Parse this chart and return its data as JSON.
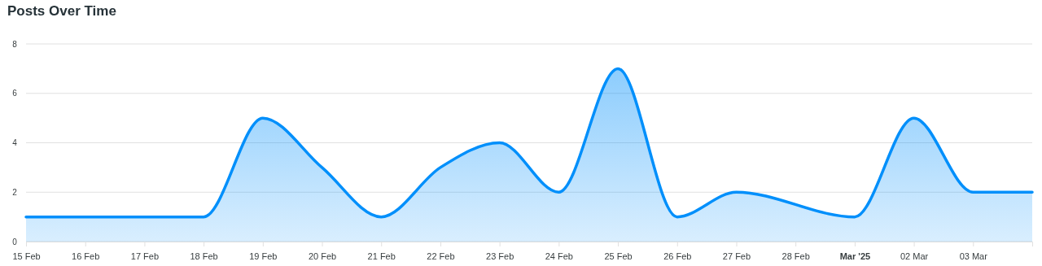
{
  "chart_data": {
    "type": "area",
    "title": "Posts Over Time",
    "x": [
      "2025-02-15",
      "2025-02-16",
      "2025-02-17",
      "2025-02-18",
      "2025-02-19",
      "2025-02-20",
      "2025-02-21",
      "2025-02-22",
      "2025-02-23",
      "2025-02-24",
      "2025-02-25",
      "2025-02-26",
      "2025-02-27",
      "2025-03-01",
      "2025-03-02",
      "2025-03-03",
      "2025-03-04"
    ],
    "values": [
      1,
      1,
      1,
      1,
      5,
      3,
      1,
      3,
      4,
      2,
      7,
      1,
      2,
      1,
      5,
      2,
      2
    ],
    "color": "#008ffb",
    "xlim": [
      "2025-02-15",
      "2025-03-04"
    ],
    "xticks": [
      {
        "value": "2025-02-15",
        "label": "15 Feb"
      },
      {
        "value": "2025-02-16",
        "label": "16 Feb"
      },
      {
        "value": "2025-02-17",
        "label": "17 Feb"
      },
      {
        "value": "2025-02-18",
        "label": "18 Feb"
      },
      {
        "value": "2025-02-19",
        "label": "19 Feb"
      },
      {
        "value": "2025-02-20",
        "label": "20 Feb"
      },
      {
        "value": "2025-02-21",
        "label": "21 Feb"
      },
      {
        "value": "2025-02-22",
        "label": "22 Feb"
      },
      {
        "value": "2025-02-23",
        "label": "23 Feb"
      },
      {
        "value": "2025-02-24",
        "label": "24 Feb"
      },
      {
        "value": "2025-02-25",
        "label": "25 Feb"
      },
      {
        "value": "2025-02-26",
        "label": "26 Feb"
      },
      {
        "value": "2025-02-27",
        "label": "27 Feb"
      },
      {
        "value": "2025-02-28",
        "label": "28 Feb"
      },
      {
        "value": "2025-03-01",
        "label": "Mar '25"
      },
      {
        "value": "2025-03-02",
        "label": "02 Mar"
      },
      {
        "value": "2025-03-03",
        "label": "03 Mar"
      }
    ],
    "ylim": [
      0,
      8
    ],
    "yticks": [
      0,
      2,
      4,
      6,
      8
    ],
    "grid": "y"
  }
}
